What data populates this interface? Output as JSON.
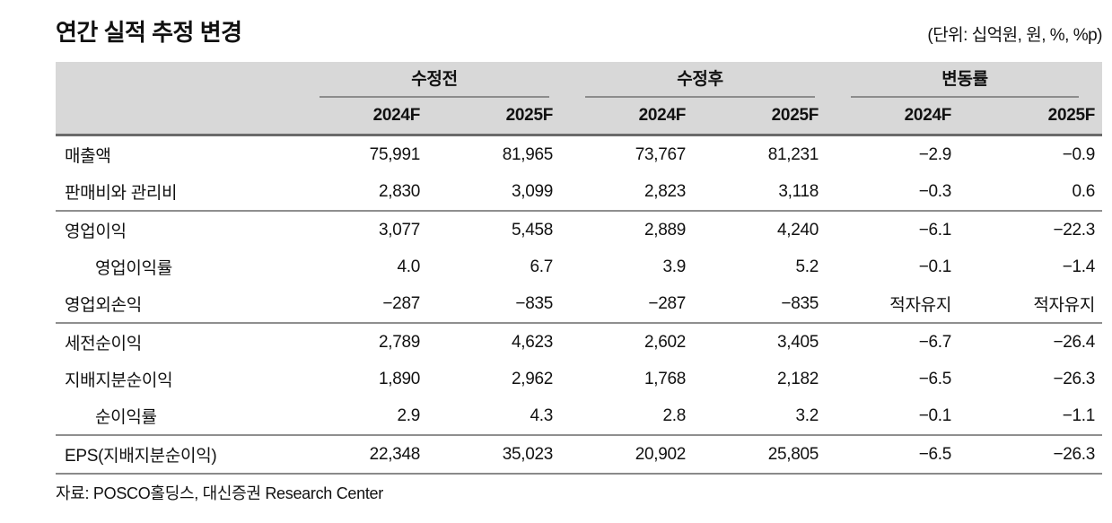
{
  "title": "연간 실적 추정 변경",
  "unit_note": "(단위: 십억원, 원, %, %p)",
  "table": {
    "groups": [
      {
        "label": "수정전"
      },
      {
        "label": "수정후"
      },
      {
        "label": "변동률"
      }
    ],
    "year_headers": [
      "2024F",
      "2025F",
      "2024F",
      "2025F",
      "2024F",
      "2025F"
    ],
    "rows": [
      {
        "label": "매출액",
        "indent": false,
        "values": [
          "75,991",
          "81,965",
          "73,767",
          "81,231",
          "−2.9",
          "−0.9"
        ],
        "sep_after": false
      },
      {
        "label": "판매비와 관리비",
        "indent": false,
        "values": [
          "2,830",
          "3,099",
          "2,823",
          "3,118",
          "−0.3",
          "0.6"
        ],
        "sep_after": true
      },
      {
        "label": "영업이익",
        "indent": false,
        "values": [
          "3,077",
          "5,458",
          "2,889",
          "4,240",
          "−6.1",
          "−22.3"
        ],
        "sep_after": false
      },
      {
        "label": "영업이익률",
        "indent": true,
        "values": [
          "4.0",
          "6.7",
          "3.9",
          "5.2",
          "−0.1",
          "−1.4"
        ],
        "sep_after": false
      },
      {
        "label": "영업외손익",
        "indent": false,
        "values": [
          "−287",
          "−835",
          "−287",
          "−835",
          "적자유지",
          "적자유지"
        ],
        "sep_after": true
      },
      {
        "label": "세전순이익",
        "indent": false,
        "values": [
          "2,789",
          "4,623",
          "2,602",
          "3,405",
          "−6.7",
          "−26.4"
        ],
        "sep_after": false
      },
      {
        "label": "지배지분순이익",
        "indent": false,
        "values": [
          "1,890",
          "2,962",
          "1,768",
          "2,182",
          "−6.5",
          "−26.3"
        ],
        "sep_after": false
      },
      {
        "label": "순이익률",
        "indent": true,
        "values": [
          "2.9",
          "4.3",
          "2.8",
          "3.2",
          "−0.1",
          "−1.1"
        ],
        "sep_after": true
      },
      {
        "label": "EPS(지배지분순이익)",
        "indent": false,
        "values": [
          "22,348",
          "35,023",
          "20,902",
          "25,805",
          "−6.5",
          "−26.3"
        ],
        "sep_after": false
      }
    ]
  },
  "footer": {
    "source": "자료: POSCO홀딩스, 대신증권 Research Center"
  },
  "colors": {
    "header_bg": "#d8d8d8",
    "heavy_rule": "#6a6a6a",
    "light_rule": "#8f8f8f",
    "text": "#111111"
  }
}
